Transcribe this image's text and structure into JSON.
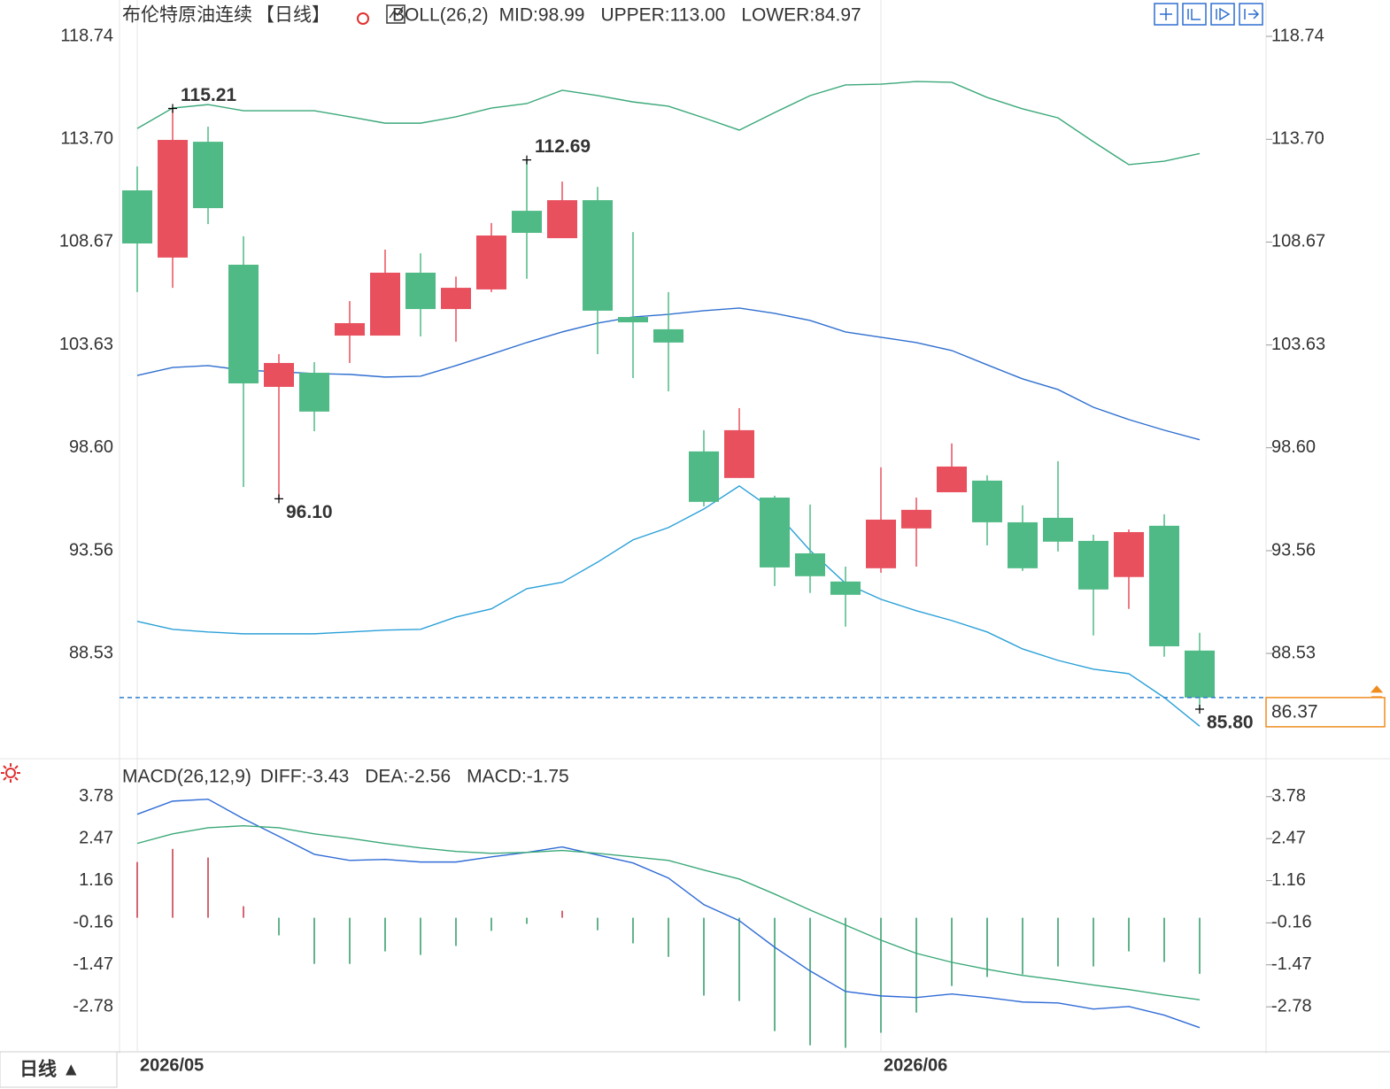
{
  "chart_data": [
    {
      "type": "candlestick",
      "title": "布伦特原油连续",
      "period": "【日线】",
      "period_color": "#f08c1e",
      "indicator": "BOLL(26,2)",
      "categories": [
        "2026/05",
        null,
        null,
        null,
        null,
        null,
        null,
        null,
        null,
        null,
        null,
        null,
        null,
        null,
        null,
        null,
        null,
        null,
        null,
        null,
        null,
        "2026/06",
        null,
        null,
        null,
        null,
        null,
        null,
        null,
        null,
        null
      ],
      "open": [
        111.2,
        107.91,
        113.58,
        107.56,
        101.58,
        102.27,
        104.09,
        104.09,
        107.17,
        105.39,
        106.35,
        110.2,
        108.86,
        110.72,
        105.0,
        104.4,
        98.42,
        97.12,
        96.16,
        93.43,
        92.05,
        92.7,
        94.65,
        96.42,
        96.99,
        94.95,
        95.17,
        94.04,
        92.27,
        94.78,
        88.67
      ],
      "high": [
        112.37,
        115.21,
        114.32,
        108.95,
        103.18,
        102.79,
        105.78,
        108.3,
        108.12,
        106.98,
        109.6,
        112.69,
        111.63,
        111.37,
        109.16,
        106.22,
        99.46,
        100.54,
        96.25,
        95.82,
        92.78,
        97.64,
        96.16,
        98.81,
        97.25,
        95.78,
        97.94,
        94.34,
        94.6,
        95.34,
        89.54
      ],
      "low": [
        106.22,
        106.43,
        109.55,
        96.68,
        96.1,
        99.41,
        102.75,
        104.09,
        104.05,
        103.79,
        106.22,
        106.87,
        108.86,
        103.18,
        102.01,
        101.36,
        95.73,
        97.12,
        91.83,
        91.49,
        89.84,
        92.48,
        92.78,
        96.42,
        93.82,
        92.57,
        93.52,
        89.41,
        90.71,
        88.37,
        85.8
      ],
      "close": [
        108.6,
        113.67,
        110.33,
        101.75,
        102.75,
        100.37,
        104.7,
        107.17,
        105.39,
        106.43,
        108.99,
        109.12,
        110.72,
        105.31,
        104.74,
        103.75,
        95.95,
        99.46,
        92.74,
        92.31,
        91.4,
        95.08,
        95.56,
        97.68,
        94.95,
        92.7,
        94.0,
        91.66,
        94.47,
        88.88,
        86.37
      ],
      "up_color": "#e8505e",
      "down_color": "#4fba85",
      "series": [
        {
          "name": "MID:98.99",
          "color": "#2f6fd0",
          "values": [
            102.14,
            102.53,
            102.62,
            102.4,
            102.32,
            102.23,
            102.19,
            102.06,
            102.1,
            102.62,
            103.18,
            103.75,
            104.27,
            104.7,
            105.0,
            105.13,
            105.31,
            105.44,
            105.18,
            104.83,
            104.27,
            104.01,
            103.75,
            103.36,
            102.66,
            101.97,
            101.45,
            100.58,
            99.98,
            99.46,
            98.99
          ]
        },
        {
          "name": "UPPER:113.00",
          "color": "#3aa87a",
          "values": [
            114.23,
            115.23,
            115.4,
            115.1,
            115.1,
            115.1,
            114.8,
            114.49,
            114.49,
            114.8,
            115.23,
            115.45,
            116.1,
            115.84,
            115.53,
            115.32,
            114.75,
            114.15,
            115.01,
            115.84,
            116.36,
            116.4,
            116.53,
            116.49,
            115.75,
            115.19,
            114.75,
            113.58,
            112.46,
            112.63,
            113.0
          ]
        },
        {
          "name": "LOWER:84.97",
          "color": "#2aa0d8",
          "values": [
            90.1,
            89.71,
            89.58,
            89.49,
            89.49,
            89.49,
            89.58,
            89.67,
            89.71,
            90.31,
            90.71,
            91.7,
            92.01,
            93.0,
            94.09,
            94.69,
            95.6,
            96.73,
            95.51,
            93.57,
            91.96,
            91.18,
            90.62,
            90.14,
            89.58,
            88.75,
            88.19,
            87.76,
            87.54,
            86.37,
            84.97
          ]
        }
      ],
      "ylim": [
        83.46,
        120.52
      ],
      "yticks": [
        118.74,
        {
          "value": 113.7,
          "label": "113.70"
        },
        108.67,
        103.63,
        {
          "value": 98.6,
          "label": "98.60"
        },
        93.56,
        88.53
      ],
      "high_marks": [
        115.21,
        112.69
      ],
      "low_marks": [
        {
          "value": 96.1,
          "label": "96.10"
        },
        {
          "value": 85.8,
          "label": "85.80"
        }
      ],
      "last_price": 86.37,
      "last_price_color": "#f08c1e"
    },
    {
      "type": "macd",
      "title": "MACD(26,12,9)",
      "series": [
        {
          "name": "DIFF:-3.43",
          "color": "#2f6bd6",
          "values": [
            3.23,
            3.64,
            3.7,
            3.09,
            2.54,
            1.98,
            1.79,
            1.82,
            1.74,
            1.74,
            1.9,
            2.04,
            2.21,
            1.96,
            1.71,
            1.24,
            0.41,
            -0.09,
            -0.92,
            -1.66,
            -2.3,
            -2.44,
            -2.49,
            -2.38,
            -2.49,
            -2.63,
            -2.66,
            -2.85,
            -2.77,
            -3.04,
            -3.43
          ]
        },
        {
          "name": "DEA:-2.56",
          "color": "#3aa878",
          "values": [
            2.32,
            2.62,
            2.81,
            2.87,
            2.81,
            2.62,
            2.48,
            2.32,
            2.18,
            2.07,
            2.01,
            2.04,
            2.1,
            2.01,
            1.9,
            1.79,
            1.49,
            1.21,
            0.74,
            0.24,
            -0.23,
            -0.7,
            -1.11,
            -1.39,
            -1.61,
            -1.8,
            -1.94,
            -2.1,
            -2.24,
            -2.41,
            -2.56
          ]
        },
        {
          "name": "MACD:-1.75",
          "color": "#4aa8e0",
          "type": "bar",
          "up_color": "#c8404f",
          "down_color": "#3aa070",
          "values": [
            1.74,
            2.15,
            1.88,
            0.36,
            -0.55,
            -1.44,
            -1.44,
            -1.05,
            -1.16,
            -0.88,
            -0.41,
            -0.19,
            0.22,
            -0.39,
            -0.8,
            -1.22,
            -2.43,
            -2.6,
            -3.54,
            -3.98,
            -4.06,
            -3.59,
            -2.96,
            -2.13,
            -1.85,
            -1.77,
            -1.52,
            -1.52,
            -1.05,
            -1.38,
            -1.75
          ]
        }
      ],
      "ylim": [
        -4.24,
        4.88
      ],
      "yticks": [
        3.78,
        2.47,
        1.16,
        -0.16,
        -1.47,
        -2.78
      ]
    }
  ],
  "footer": {
    "button": "日线 ▲",
    "color": "#f08c1e"
  }
}
